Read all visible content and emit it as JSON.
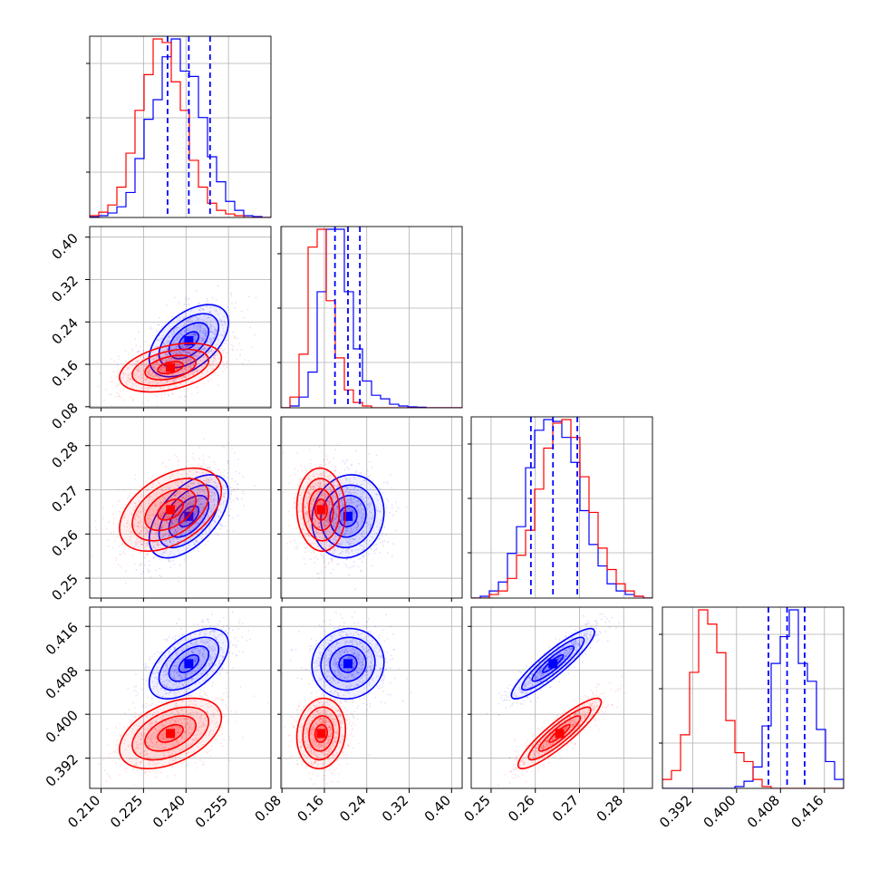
{
  "figure": {
    "type": "corner-plot",
    "background": "#ffffff"
  },
  "colors": {
    "blue": "#0000ff",
    "red": "#ff0000",
    "grid": "#b0b0b0"
  },
  "chart_data": {
    "type": "corner",
    "parameters": [
      {
        "range": [
          0.206,
          0.27
        ],
        "ticks": [
          0.21,
          0.225,
          0.24,
          0.255
        ],
        "tick_labels": [
          "0.210",
          "0.225",
          "0.240",
          "0.255"
        ]
      },
      {
        "range": [
          0.078,
          0.42
        ],
        "ticks": [
          0.08,
          0.16,
          0.24,
          0.32,
          0.4
        ],
        "tick_labels": [
          "0.08",
          "0.16",
          "0.24",
          "0.32",
          "0.40"
        ]
      },
      {
        "range": [
          0.2455,
          0.2865
        ],
        "ticks": [
          0.25,
          0.26,
          0.27,
          0.28
        ],
        "tick_labels": [
          "0.25",
          "0.26",
          "0.27",
          "0.28"
        ]
      },
      {
        "range": [
          0.3865,
          0.4195
        ],
        "ticks": [
          0.392,
          0.4,
          0.408,
          0.416
        ],
        "tick_labels": [
          "0.392",
          "0.400",
          "0.408",
          "0.416"
        ]
      }
    ],
    "series": [
      {
        "color": "blue",
        "means": [
          0.241,
          0.2045,
          0.264,
          0.4092
        ],
        "stds": [
          0.007,
          0.034,
          0.0047,
          0.0032
        ],
        "corr": [
          [
            1.0,
            0.5,
            0.55,
            0.55
          ],
          [
            0.5,
            1.0,
            0.1,
            0.05
          ],
          [
            0.55,
            0.1,
            1.0,
            0.9
          ],
          [
            0.55,
            0.05,
            0.9,
            1.0
          ]
        ],
        "quantiles_16_50_84": [
          [
            0.2335,
            0.241,
            0.2485
          ],
          [
            0.18,
            0.2045,
            0.227
          ],
          [
            0.259,
            0.264,
            0.2695
          ],
          [
            0.4058,
            0.4092,
            0.4124
          ]
        ],
        "hist": [
          [
            0.003,
            0.01,
            0.025,
            0.06,
            0.14,
            0.33,
            0.55,
            0.66,
            0.9,
            1.0,
            0.82,
            0.79,
            0.56,
            0.34,
            0.2,
            0.09,
            0.04,
            0.01,
            0.005,
            0.0
          ],
          [
            0.0,
            0.01,
            0.06,
            0.2,
            0.65,
            1.0,
            1.0,
            0.65,
            0.33,
            0.15,
            0.07,
            0.05,
            0.02,
            0.01,
            0.005,
            0.003,
            0.0,
            0.0,
            0.0,
            0.0
          ],
          [
            0.0,
            0.01,
            0.04,
            0.09,
            0.25,
            0.4,
            0.73,
            0.94,
            1.0,
            0.99,
            0.9,
            0.76,
            0.49,
            0.3,
            0.18,
            0.08,
            0.04,
            0.02,
            0.01,
            0.0
          ],
          [
            0.0,
            0.0,
            0.0,
            0.0,
            0.0,
            0.0,
            0.0,
            0.0,
            0.01,
            0.04,
            0.12,
            0.35,
            0.7,
            0.85,
            1.0,
            0.7,
            0.6,
            0.33,
            0.15,
            0.05
          ]
        ]
      },
      {
        "color": "red",
        "means": [
          0.2345,
          0.154,
          0.2655,
          0.3965
        ],
        "stds": [
          0.009,
          0.023,
          0.0047,
          0.0032
        ],
        "corr": [
          [
            1.0,
            0.4,
            0.45,
            0.45
          ],
          [
            0.4,
            1.0,
            -0.05,
            0.1
          ],
          [
            0.45,
            -0.05,
            1.0,
            0.9
          ],
          [
            0.45,
            0.1,
            0.9,
            1.0
          ]
        ],
        "hist": [
          [
            0.01,
            0.03,
            0.07,
            0.17,
            0.36,
            0.6,
            0.8,
            1.0,
            0.98,
            0.76,
            0.6,
            0.32,
            0.17,
            0.08,
            0.04,
            0.02,
            0.01,
            0.0,
            0.0,
            0.0
          ],
          [
            0.0,
            0.06,
            0.3,
            0.9,
            1.0,
            0.6,
            0.28,
            0.1,
            0.03,
            0.01,
            0.0,
            0.0,
            0.0,
            0.0,
            0.0,
            0.0,
            0.0,
            0.0,
            0.0,
            0.0
          ],
          [
            0.0,
            0.0,
            0.02,
            0.04,
            0.11,
            0.24,
            0.38,
            0.61,
            0.84,
            0.98,
            1.0,
            0.9,
            0.68,
            0.48,
            0.28,
            0.16,
            0.08,
            0.04,
            0.01,
            0.0
          ],
          [
            0.05,
            0.1,
            0.3,
            0.65,
            1.0,
            0.92,
            0.76,
            0.38,
            0.2,
            0.15,
            0.05,
            0.01,
            0.0,
            0.0,
            0.0,
            0.0,
            0.0,
            0.0,
            0.0,
            0.0
          ]
        ]
      }
    ],
    "contour_levels_sigma": [
      0.5,
      1.0,
      1.5,
      2.0
    ],
    "grid": true,
    "legend": "none"
  }
}
